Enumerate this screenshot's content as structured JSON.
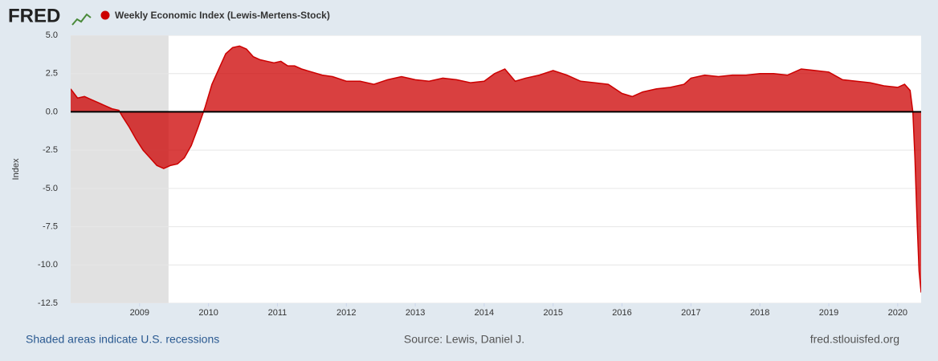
{
  "logo": "FRED",
  "chart_data": {
    "type": "area",
    "x": [
      2008.0,
      2008.1,
      2008.2,
      2008.3,
      2008.4,
      2008.5,
      2008.6,
      2008.7,
      2008.75,
      2008.85,
      2008.95,
      2009.05,
      2009.15,
      2009.25,
      2009.35,
      2009.45,
      2009.55,
      2009.65,
      2009.75,
      2009.85,
      2009.95,
      2010.05,
      2010.15,
      2010.25,
      2010.35,
      2010.45,
      2010.55,
      2010.65,
      2010.75,
      2010.85,
      2010.95,
      2011.05,
      2011.15,
      2011.25,
      2011.35,
      2011.5,
      2011.65,
      2011.8,
      2012.0,
      2012.2,
      2012.4,
      2012.6,
      2012.8,
      2013.0,
      2013.2,
      2013.4,
      2013.6,
      2013.8,
      2014.0,
      2014.15,
      2014.3,
      2014.45,
      2014.6,
      2014.8,
      2015.0,
      2015.2,
      2015.4,
      2015.6,
      2015.8,
      2016.0,
      2016.15,
      2016.3,
      2016.5,
      2016.7,
      2016.9,
      2017.0,
      2017.2,
      2017.4,
      2017.6,
      2017.8,
      2018.0,
      2018.2,
      2018.4,
      2018.6,
      2018.8,
      2019.0,
      2019.2,
      2019.4,
      2019.6,
      2019.8,
      2020.0,
      2020.1,
      2020.18,
      2020.22,
      2020.25,
      2020.28,
      2020.31,
      2020.34
    ],
    "series": [
      {
        "name": "Weekly Economic Index (Lewis-Mertens-Stock)",
        "color": "#cc0000",
        "values": [
          1.5,
          0.9,
          1.0,
          0.8,
          0.6,
          0.4,
          0.2,
          0.1,
          -0.3,
          -1.0,
          -1.8,
          -2.5,
          -3.0,
          -3.5,
          -3.7,
          -3.5,
          -3.4,
          -3.0,
          -2.2,
          -1.0,
          0.3,
          1.8,
          2.8,
          3.8,
          4.2,
          4.3,
          4.1,
          3.6,
          3.4,
          3.3,
          3.2,
          3.3,
          3.0,
          3.0,
          2.8,
          2.6,
          2.4,
          2.3,
          2.0,
          2.0,
          1.8,
          2.1,
          2.3,
          2.1,
          2.0,
          2.2,
          2.1,
          1.9,
          2.0,
          2.5,
          2.8,
          2.0,
          2.2,
          2.4,
          2.7,
          2.4,
          2.0,
          1.9,
          1.8,
          1.2,
          1.0,
          1.3,
          1.5,
          1.6,
          1.8,
          2.2,
          2.4,
          2.3,
          2.4,
          2.4,
          2.5,
          2.5,
          2.4,
          2.8,
          2.7,
          2.6,
          2.1,
          2.0,
          1.9,
          1.7,
          1.6,
          1.8,
          1.4,
          0.0,
          -3.0,
          -7.0,
          -10.4,
          -11.8
        ]
      }
    ],
    "recessions": [
      [
        2007.92,
        2009.42
      ]
    ],
    "xlim": [
      2008.0,
      2020.34
    ],
    "xticks": [
      2009,
      2010,
      2011,
      2012,
      2013,
      2014,
      2015,
      2016,
      2017,
      2018,
      2019,
      2020
    ],
    "ylim": [
      -12.5,
      5
    ],
    "yticks": [
      {
        "value": 5,
        "label": "5.0"
      },
      {
        "value": 2.5,
        "label": "2.5"
      },
      {
        "value": 0,
        "label": "0.0"
      },
      {
        "value": -2.5,
        "label": "-2.5"
      },
      {
        "value": -5,
        "label": "-5.0"
      },
      {
        "value": -7.5,
        "label": "-7.5"
      },
      {
        "value": -10,
        "label": "-10.0"
      },
      {
        "value": -12.5,
        "label": "-12.5"
      }
    ],
    "ylabel": "Index",
    "grid": true,
    "note": "Shaded areas indicate U.S. recessions",
    "source": "Source: Lewis, Daniel J.",
    "site": "fred.stlouisfed.org"
  }
}
